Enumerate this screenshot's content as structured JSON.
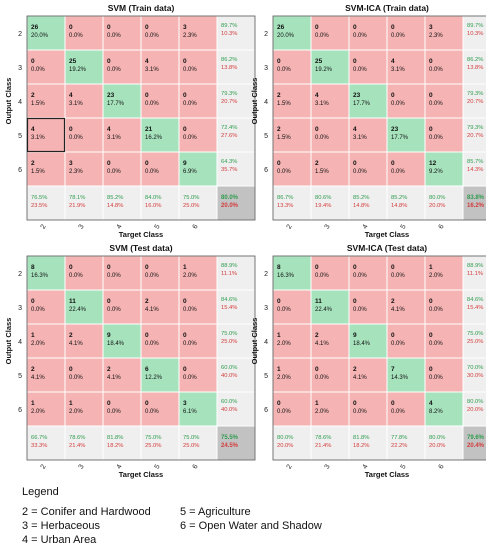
{
  "chart_data": [
    {
      "type": "heatmap",
      "title": "SVM (Train data)",
      "xlabel": "Target Class",
      "ylabel": "Output Class",
      "classes": [
        "2",
        "3",
        "4",
        "5",
        "6"
      ],
      "cells": [
        [
          [
            "26",
            "20.0%"
          ],
          [
            "0",
            "0.0%"
          ],
          [
            "0",
            "0.0%"
          ],
          [
            "0",
            "0.0%"
          ],
          [
            "3",
            "2.3%"
          ]
        ],
        [
          [
            "0",
            "0.0%"
          ],
          [
            "25",
            "19.2%"
          ],
          [
            "0",
            "0.0%"
          ],
          [
            "4",
            "3.1%"
          ],
          [
            "0",
            "0.0%"
          ]
        ],
        [
          [
            "2",
            "1.5%"
          ],
          [
            "4",
            "3.1%"
          ],
          [
            "23",
            "17.7%"
          ],
          [
            "0",
            "0.0%"
          ],
          [
            "0",
            "0.0%"
          ]
        ],
        [
          [
            "4",
            "3.1%"
          ],
          [
            "0",
            "0.0%"
          ],
          [
            "4",
            "3.1%"
          ],
          [
            "21",
            "16.2%"
          ],
          [
            "0",
            "0.0%"
          ]
        ],
        [
          [
            "2",
            "1.5%"
          ],
          [
            "3",
            "2.3%"
          ],
          [
            "0",
            "0.0%"
          ],
          [
            "0",
            "0.0%"
          ],
          [
            "9",
            "6.9%"
          ]
        ]
      ],
      "row_summary": [
        [
          "89.7%",
          "10.3%"
        ],
        [
          "86.2%",
          "13.8%"
        ],
        [
          "79.3%",
          "20.7%"
        ],
        [
          "72.4%",
          "27.6%"
        ],
        [
          "64.3%",
          "35.7%"
        ]
      ],
      "col_summary": [
        [
          "76.5%",
          "23.5%"
        ],
        [
          "78.1%",
          "21.9%"
        ],
        [
          "85.2%",
          "14.8%"
        ],
        [
          "84.0%",
          "16.0%"
        ],
        [
          "75.0%",
          "25.0%"
        ]
      ],
      "total": [
        "80.0%",
        "20.0%"
      ],
      "highlight": [
        3,
        0
      ]
    },
    {
      "type": "heatmap",
      "title": "SVM-ICA (Train data)",
      "xlabel": "Target Class",
      "ylabel": "Output Class",
      "classes": [
        "2",
        "3",
        "4",
        "5",
        "6"
      ],
      "cells": [
        [
          [
            "26",
            "20.0%"
          ],
          [
            "0",
            "0.0%"
          ],
          [
            "0",
            "0.0%"
          ],
          [
            "0",
            "0.0%"
          ],
          [
            "3",
            "2.3%"
          ]
        ],
        [
          [
            "0",
            "0.0%"
          ],
          [
            "25",
            "19.2%"
          ],
          [
            "0",
            "0.0%"
          ],
          [
            "4",
            "3.1%"
          ],
          [
            "0",
            "0.0%"
          ]
        ],
        [
          [
            "2",
            "1.5%"
          ],
          [
            "4",
            "3.1%"
          ],
          [
            "23",
            "17.7%"
          ],
          [
            "0",
            "0.0%"
          ],
          [
            "0",
            "0.0%"
          ]
        ],
        [
          [
            "2",
            "1.5%"
          ],
          [
            "0",
            "0.0%"
          ],
          [
            "4",
            "3.1%"
          ],
          [
            "23",
            "17.7%"
          ],
          [
            "0",
            "0.0%"
          ]
        ],
        [
          [
            "0",
            "0.0%"
          ],
          [
            "2",
            "1.5%"
          ],
          [
            "0",
            "0.0%"
          ],
          [
            "0",
            "0.0%"
          ],
          [
            "12",
            "9.2%"
          ]
        ]
      ],
      "row_summary": [
        [
          "89.7%",
          "10.3%"
        ],
        [
          "86.2%",
          "13.8%"
        ],
        [
          "79.3%",
          "20.7%"
        ],
        [
          "79.3%",
          "20.7%"
        ],
        [
          "85.7%",
          "14.3%"
        ]
      ],
      "col_summary": [
        [
          "86.7%",
          "13.3%"
        ],
        [
          "80.6%",
          "19.4%"
        ],
        [
          "85.2%",
          "14.8%"
        ],
        [
          "85.2%",
          "14.8%"
        ],
        [
          "80.0%",
          "20.0%"
        ]
      ],
      "total": [
        "83.8%",
        "16.2%"
      ],
      "highlight": null
    },
    {
      "type": "heatmap",
      "title": "SVM (Test data)",
      "xlabel": "Target Class",
      "ylabel": "Output Class",
      "classes": [
        "2",
        "3",
        "4",
        "5",
        "6"
      ],
      "cells": [
        [
          [
            "8",
            "16.3%"
          ],
          [
            "0",
            "0.0%"
          ],
          [
            "0",
            "0.0%"
          ],
          [
            "0",
            "0.0%"
          ],
          [
            "1",
            "2.0%"
          ]
        ],
        [
          [
            "0",
            "0.0%"
          ],
          [
            "11",
            "22.4%"
          ],
          [
            "0",
            "0.0%"
          ],
          [
            "2",
            "4.1%"
          ],
          [
            "0",
            "0.0%"
          ]
        ],
        [
          [
            "1",
            "2.0%"
          ],
          [
            "2",
            "4.1%"
          ],
          [
            "9",
            "18.4%"
          ],
          [
            "0",
            "0.0%"
          ],
          [
            "0",
            "0.0%"
          ]
        ],
        [
          [
            "2",
            "4.1%"
          ],
          [
            "0",
            "0.0%"
          ],
          [
            "2",
            "4.1%"
          ],
          [
            "6",
            "12.2%"
          ],
          [
            "0",
            "0.0%"
          ]
        ],
        [
          [
            "1",
            "2.0%"
          ],
          [
            "1",
            "2.0%"
          ],
          [
            "0",
            "0.0%"
          ],
          [
            "0",
            "0.0%"
          ],
          [
            "3",
            "6.1%"
          ]
        ]
      ],
      "row_summary": [
        [
          "88.9%",
          "11.1%"
        ],
        [
          "84.6%",
          "15.4%"
        ],
        [
          "75.0%",
          "25.0%"
        ],
        [
          "60.0%",
          "40.0%"
        ],
        [
          "60.0%",
          "40.0%"
        ]
      ],
      "col_summary": [
        [
          "66.7%",
          "33.3%"
        ],
        [
          "78.6%",
          "21.4%"
        ],
        [
          "81.8%",
          "18.2%"
        ],
        [
          "75.0%",
          "25.0%"
        ],
        [
          "75.0%",
          "25.0%"
        ]
      ],
      "total": [
        "75.5%",
        "24.5%"
      ],
      "highlight": null
    },
    {
      "type": "heatmap",
      "title": "SVM-ICA (Test data)",
      "xlabel": "Target Class",
      "ylabel": "Output Class",
      "classes": [
        "2",
        "3",
        "4",
        "5",
        "6"
      ],
      "cells": [
        [
          [
            "8",
            "16.3%"
          ],
          [
            "0",
            "0.0%"
          ],
          [
            "0",
            "0.0%"
          ],
          [
            "0",
            "0.0%"
          ],
          [
            "1",
            "2.0%"
          ]
        ],
        [
          [
            "0",
            "0.0%"
          ],
          [
            "11",
            "22.4%"
          ],
          [
            "0",
            "0.0%"
          ],
          [
            "2",
            "4.1%"
          ],
          [
            "0",
            "0.0%"
          ]
        ],
        [
          [
            "1",
            "2.0%"
          ],
          [
            "2",
            "4.1%"
          ],
          [
            "9",
            "18.4%"
          ],
          [
            "0",
            "0.0%"
          ],
          [
            "0",
            "0.0%"
          ]
        ],
        [
          [
            "1",
            "2.0%"
          ],
          [
            "0",
            "0.0%"
          ],
          [
            "2",
            "4.1%"
          ],
          [
            "7",
            "14.3%"
          ],
          [
            "0",
            "0.0%"
          ]
        ],
        [
          [
            "0",
            "0.0%"
          ],
          [
            "1",
            "2.0%"
          ],
          [
            "0",
            "0.0%"
          ],
          [
            "0",
            "0.0%"
          ],
          [
            "4",
            "8.2%"
          ]
        ]
      ],
      "row_summary": [
        [
          "88.9%",
          "11.1%"
        ],
        [
          "84.6%",
          "15.4%"
        ],
        [
          "75.0%",
          "25.0%"
        ],
        [
          "70.0%",
          "30.0%"
        ],
        [
          "80.0%",
          "20.0%"
        ]
      ],
      "col_summary": [
        [
          "80.0%",
          "20.0%"
        ],
        [
          "78.6%",
          "21.4%"
        ],
        [
          "81.8%",
          "18.2%"
        ],
        [
          "77.8%",
          "22.2%"
        ],
        [
          "80.0%",
          "20.0%"
        ]
      ],
      "total": [
        "79.6%",
        "20.4%"
      ],
      "highlight": null
    }
  ],
  "legend": {
    "title": "Legend",
    "items": [
      "2 = Conifer and Hardwood",
      "3 = Herbaceous",
      "4 = Urban Area",
      "5 = Agriculture",
      "6 = Open Water and Shadow"
    ]
  },
  "colors": {
    "diag": "#a6e3bd",
    "offdiag": "#f5b3b3",
    "summary": "#efefef",
    "total": "#c2c2c2",
    "good_text": "#2e9c4e",
    "bad_text": "#d43b3b",
    "grid": "#ffffff",
    "frame": "#555555"
  }
}
